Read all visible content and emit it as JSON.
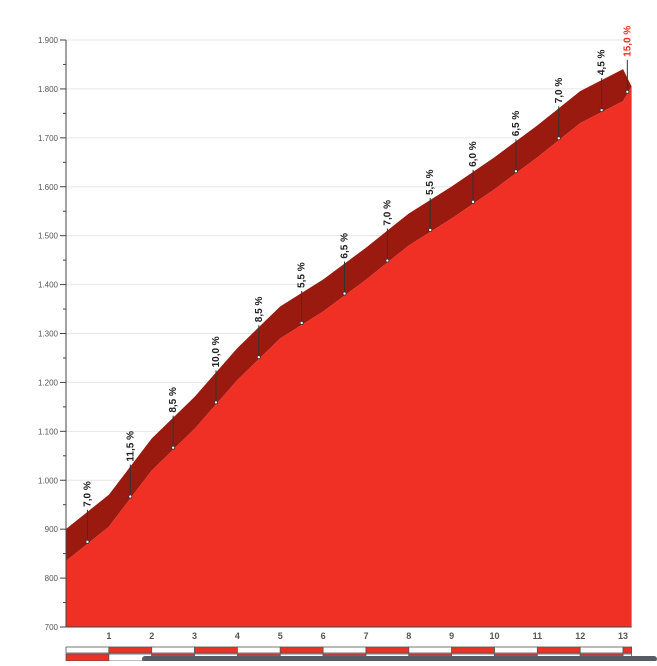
{
  "chart_data": {
    "type": "area",
    "xlabel": "",
    "ylabel": "",
    "xlim": [
      0,
      13.2
    ],
    "ylim": [
      700,
      1900
    ],
    "grid": true,
    "y_ticks": [
      "700",
      "800",
      "900",
      "1.000",
      "1.100",
      "1.200",
      "1.300",
      "1.400",
      "1.500",
      "1.600",
      "1.700",
      "1.800",
      "1.900"
    ],
    "y_tick_values": [
      700,
      800,
      900,
      1000,
      1100,
      1200,
      1300,
      1400,
      1500,
      1600,
      1700,
      1800,
      1900
    ],
    "x_ticks": [
      "1",
      "2",
      "3",
      "4",
      "5",
      "6",
      "7",
      "8",
      "9",
      "10",
      "11",
      "12",
      "13"
    ],
    "x": [
      0,
      1,
      2,
      3,
      4,
      5,
      6,
      7,
      8,
      9,
      10,
      11,
      12,
      13,
      13.2
    ],
    "elevation": [
      835,
      905,
      1020,
      1105,
      1205,
      1290,
      1345,
      1410,
      1480,
      1535,
      1595,
      1660,
      1730,
      1775,
      1805
    ],
    "gradients": [
      {
        "km": 0.5,
        "label": "7,0 %"
      },
      {
        "km": 1.5,
        "label": "11,5 %"
      },
      {
        "km": 2.5,
        "label": "8,5 %"
      },
      {
        "km": 3.5,
        "label": "10,0 %"
      },
      {
        "km": 4.5,
        "label": "8,5 %"
      },
      {
        "km": 5.5,
        "label": "5,5 %"
      },
      {
        "km": 6.5,
        "label": "6,5 %"
      },
      {
        "km": 7.5,
        "label": "7,0 %"
      },
      {
        "km": 8.5,
        "label": "5,5 %"
      },
      {
        "km": 9.5,
        "label": "6,0 %"
      },
      {
        "km": 10.5,
        "label": "6,5 %"
      },
      {
        "km": 11.5,
        "label": "7,0 %"
      },
      {
        "km": 12.5,
        "label": "4,5 %"
      },
      {
        "km": 13.1,
        "label": "15,0 %",
        "highlight": true
      }
    ],
    "colors": {
      "fill": "#f03024",
      "shade": "#9a1a10",
      "highlight": "#f03024",
      "grid": "#e6e6e6"
    }
  }
}
